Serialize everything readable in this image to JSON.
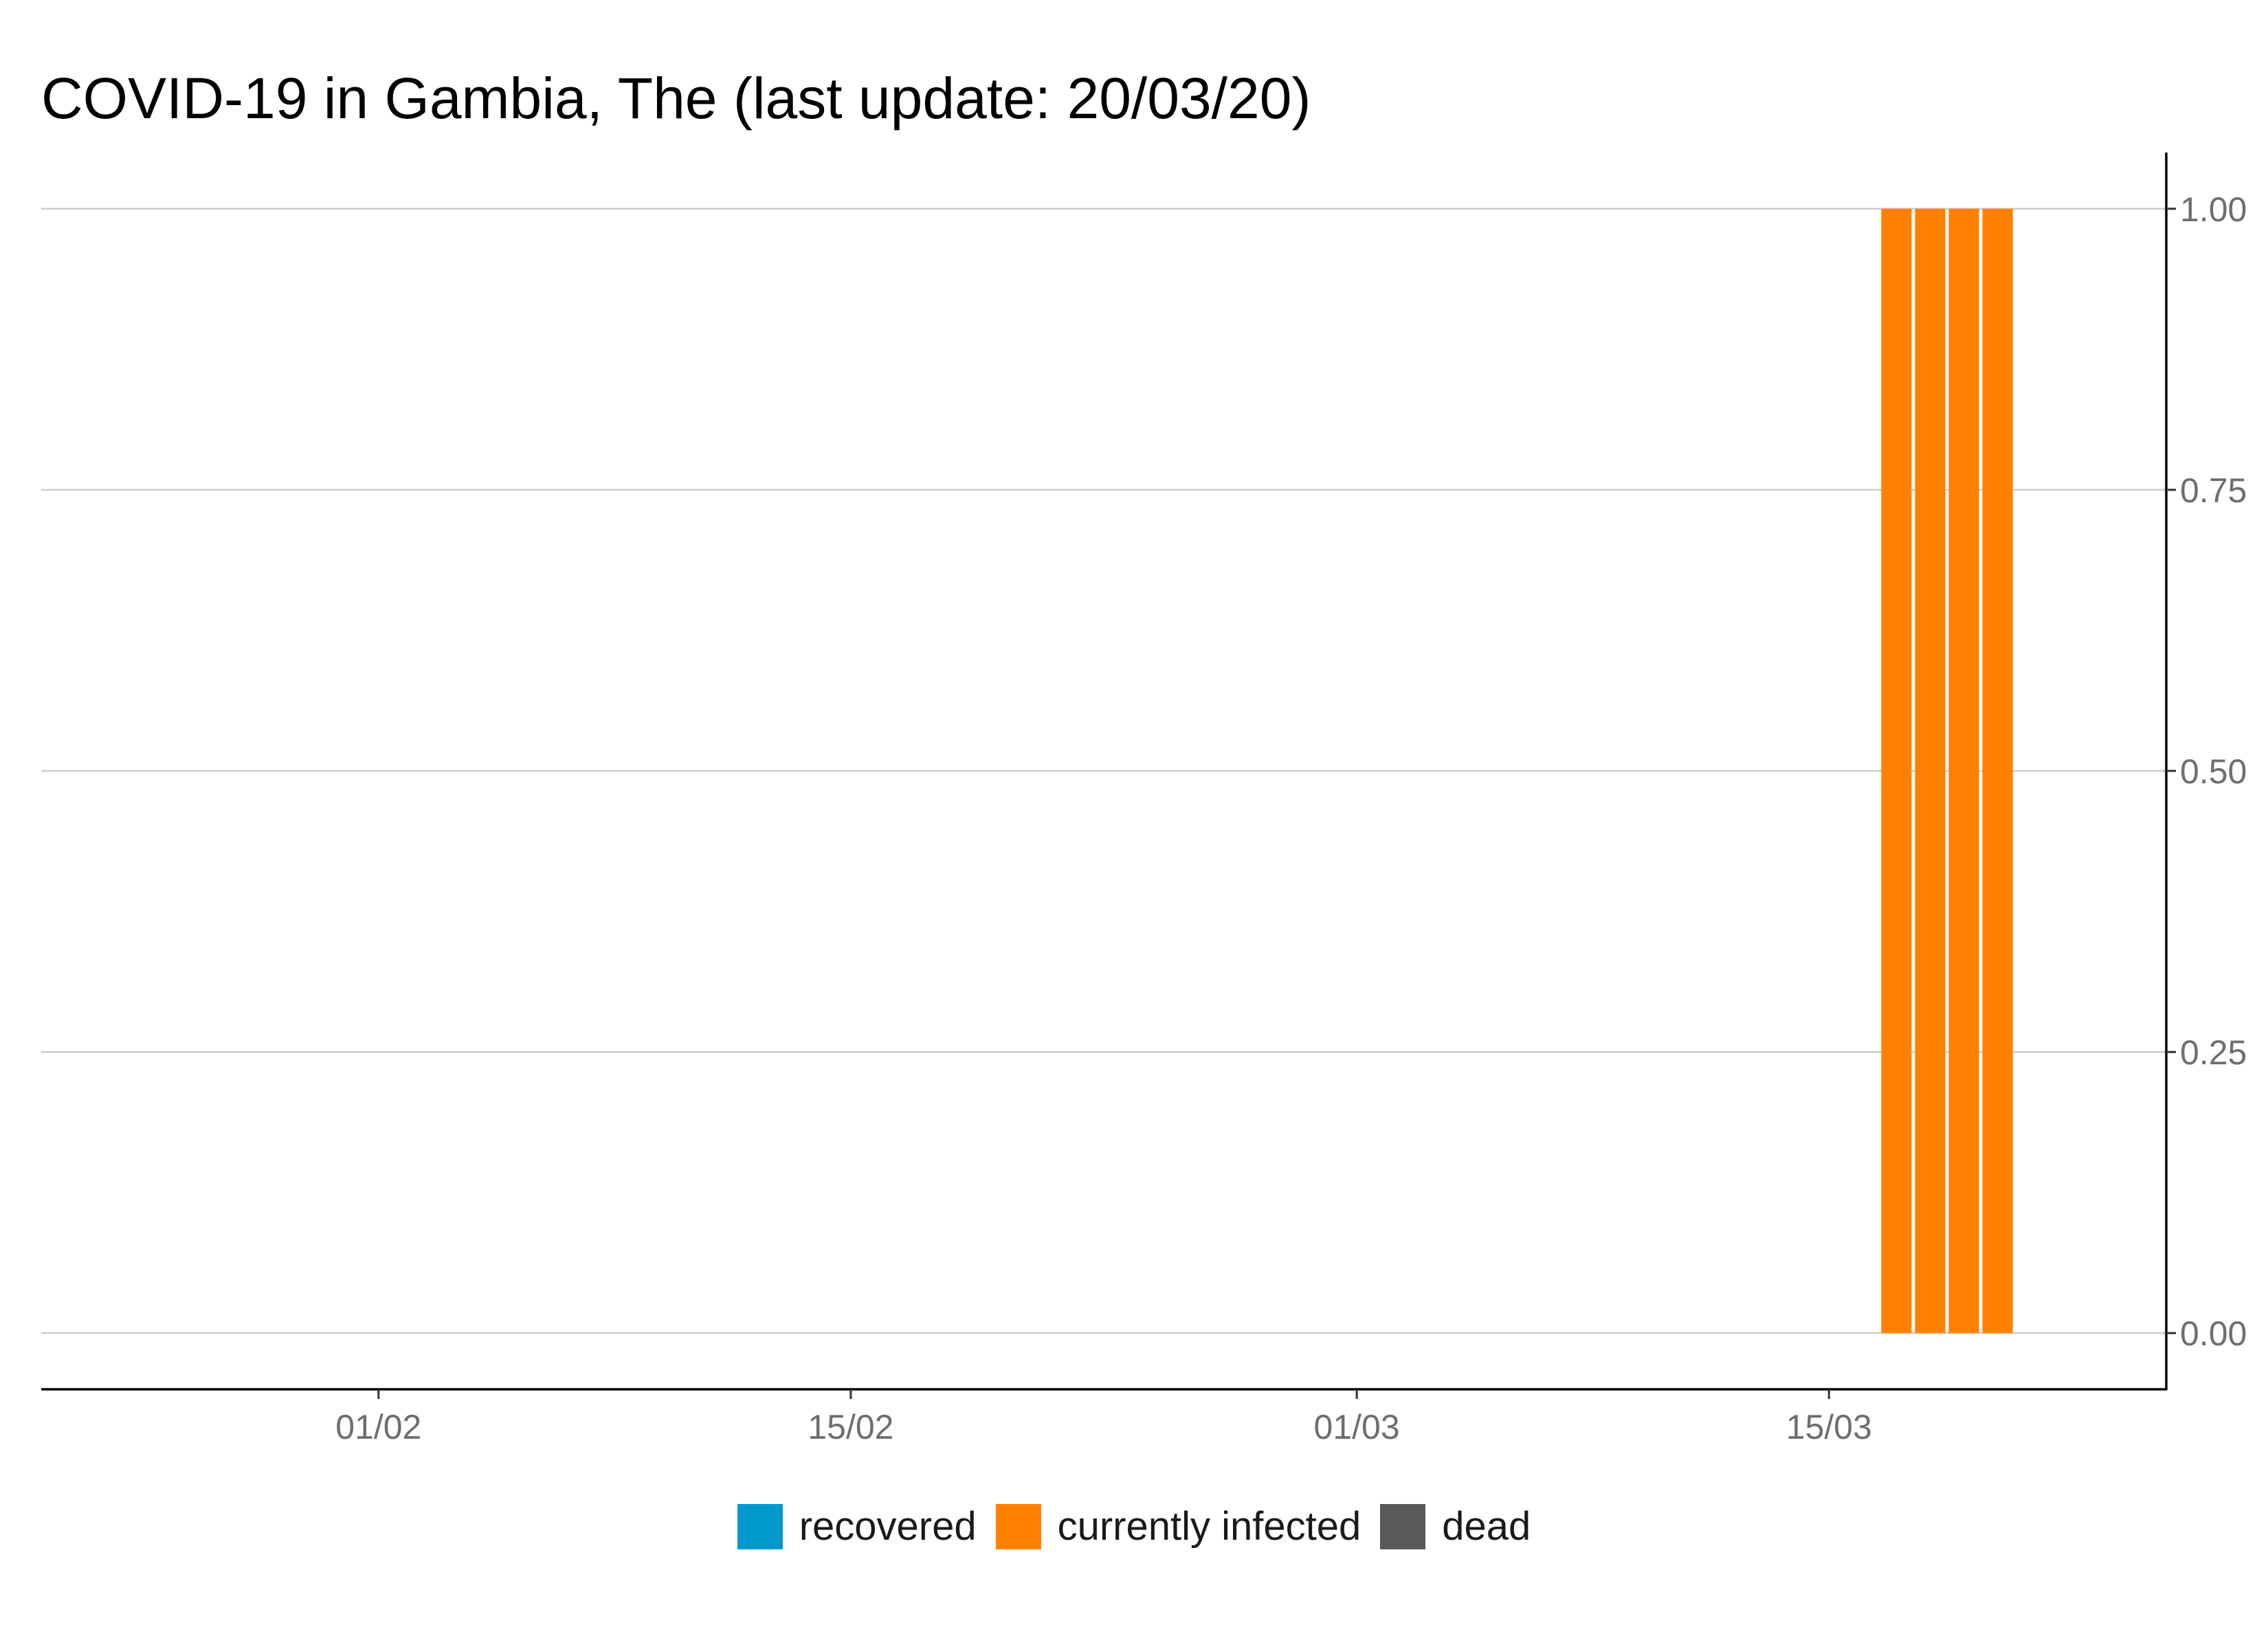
{
  "chart_data": {
    "type": "bar",
    "stacked": true,
    "title": "COVID-19 in Gambia, The (last update: 20/03/20)",
    "xlabel": "",
    "ylabel": "",
    "x_axis": {
      "type": "date",
      "range": [
        "2020-01-22",
        "2020-03-25"
      ],
      "ticks": [
        {
          "date": "2020-02-01",
          "label": "01/02"
        },
        {
          "date": "2020-02-15",
          "label": "15/02"
        },
        {
          "date": "2020-03-01",
          "label": "01/03"
        },
        {
          "date": "2020-03-15",
          "label": "15/03"
        }
      ]
    },
    "y_axis": {
      "position": "right",
      "ylim": [
        -0.05,
        1.05
      ],
      "ticks": [
        {
          "value": 0,
          "label": "0.00"
        },
        {
          "value": 0.25,
          "label": "0.25"
        },
        {
          "value": 0.5,
          "label": "0.50"
        },
        {
          "value": 0.75,
          "label": "0.75"
        },
        {
          "value": 1,
          "label": "1.00"
        }
      ]
    },
    "grid": "horizontal",
    "legend_position": "bottom",
    "dates": [
      "2020-03-17",
      "2020-03-18",
      "2020-03-19",
      "2020-03-20"
    ],
    "series": [
      {
        "name": "recovered",
        "color": "#0099cc",
        "values": [
          0,
          0,
          0,
          0
        ]
      },
      {
        "name": "currently infected",
        "color": "#ff8000",
        "values": [
          1,
          1,
          1,
          1
        ]
      },
      {
        "name": "dead",
        "color": "#595959",
        "values": [
          0,
          0,
          0,
          0
        ]
      }
    ]
  }
}
